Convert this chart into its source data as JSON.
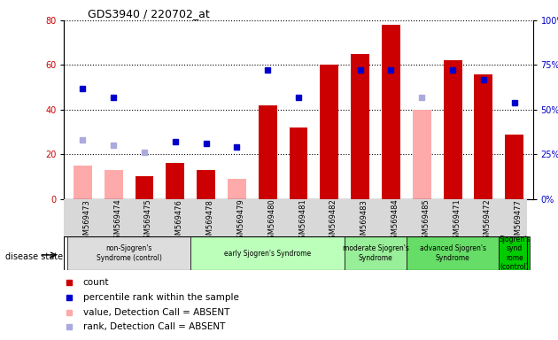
{
  "title": "GDS3940 / 220702_at",
  "samples": [
    "GSM569473",
    "GSM569474",
    "GSM569475",
    "GSM569476",
    "GSM569478",
    "GSM569479",
    "GSM569480",
    "GSM569481",
    "GSM569482",
    "GSM569483",
    "GSM569484",
    "GSM569485",
    "GSM569471",
    "GSM569472",
    "GSM569477"
  ],
  "count": [
    null,
    null,
    10,
    16,
    13,
    null,
    42,
    32,
    60,
    65,
    78,
    null,
    62,
    56,
    29
  ],
  "percentile_rank": [
    62,
    57,
    null,
    32,
    31,
    29,
    72,
    57,
    null,
    72,
    72,
    null,
    72,
    67,
    54
  ],
  "value_absent": [
    15,
    13,
    null,
    null,
    null,
    9,
    null,
    null,
    null,
    null,
    null,
    40,
    null,
    null,
    null
  ],
  "rank_absent": [
    33,
    30,
    26,
    null,
    null,
    null,
    null,
    null,
    null,
    null,
    null,
    57,
    null,
    null,
    null
  ],
  "count_color": "#cc0000",
  "percentile_color": "#0000cc",
  "value_absent_color": "#ffaaaa",
  "rank_absent_color": "#aaaadd",
  "ylim_left": [
    0,
    80
  ],
  "ylim_right": [
    0,
    100
  ],
  "yticks_left": [
    0,
    20,
    40,
    60,
    80
  ],
  "yticks_right": [
    0,
    25,
    50,
    75,
    100
  ],
  "groups": [
    {
      "label": "non-Sjogren's\nSyndrome (control)",
      "start": 0,
      "end": 4,
      "color": "#dddddd"
    },
    {
      "label": "early Sjogren's Syndrome",
      "start": 4,
      "end": 9,
      "color": "#bbffbb"
    },
    {
      "label": "moderate Sjogren's\nSyndrome",
      "start": 9,
      "end": 11,
      "color": "#99ee99"
    },
    {
      "label": "advanced Sjogren's\nSyndrome",
      "start": 11,
      "end": 14,
      "color": "#66dd66"
    },
    {
      "label": "Sjogren's\nsynd\nrome\n(control)",
      "start": 14,
      "end": 15,
      "color": "#00cc00"
    }
  ]
}
